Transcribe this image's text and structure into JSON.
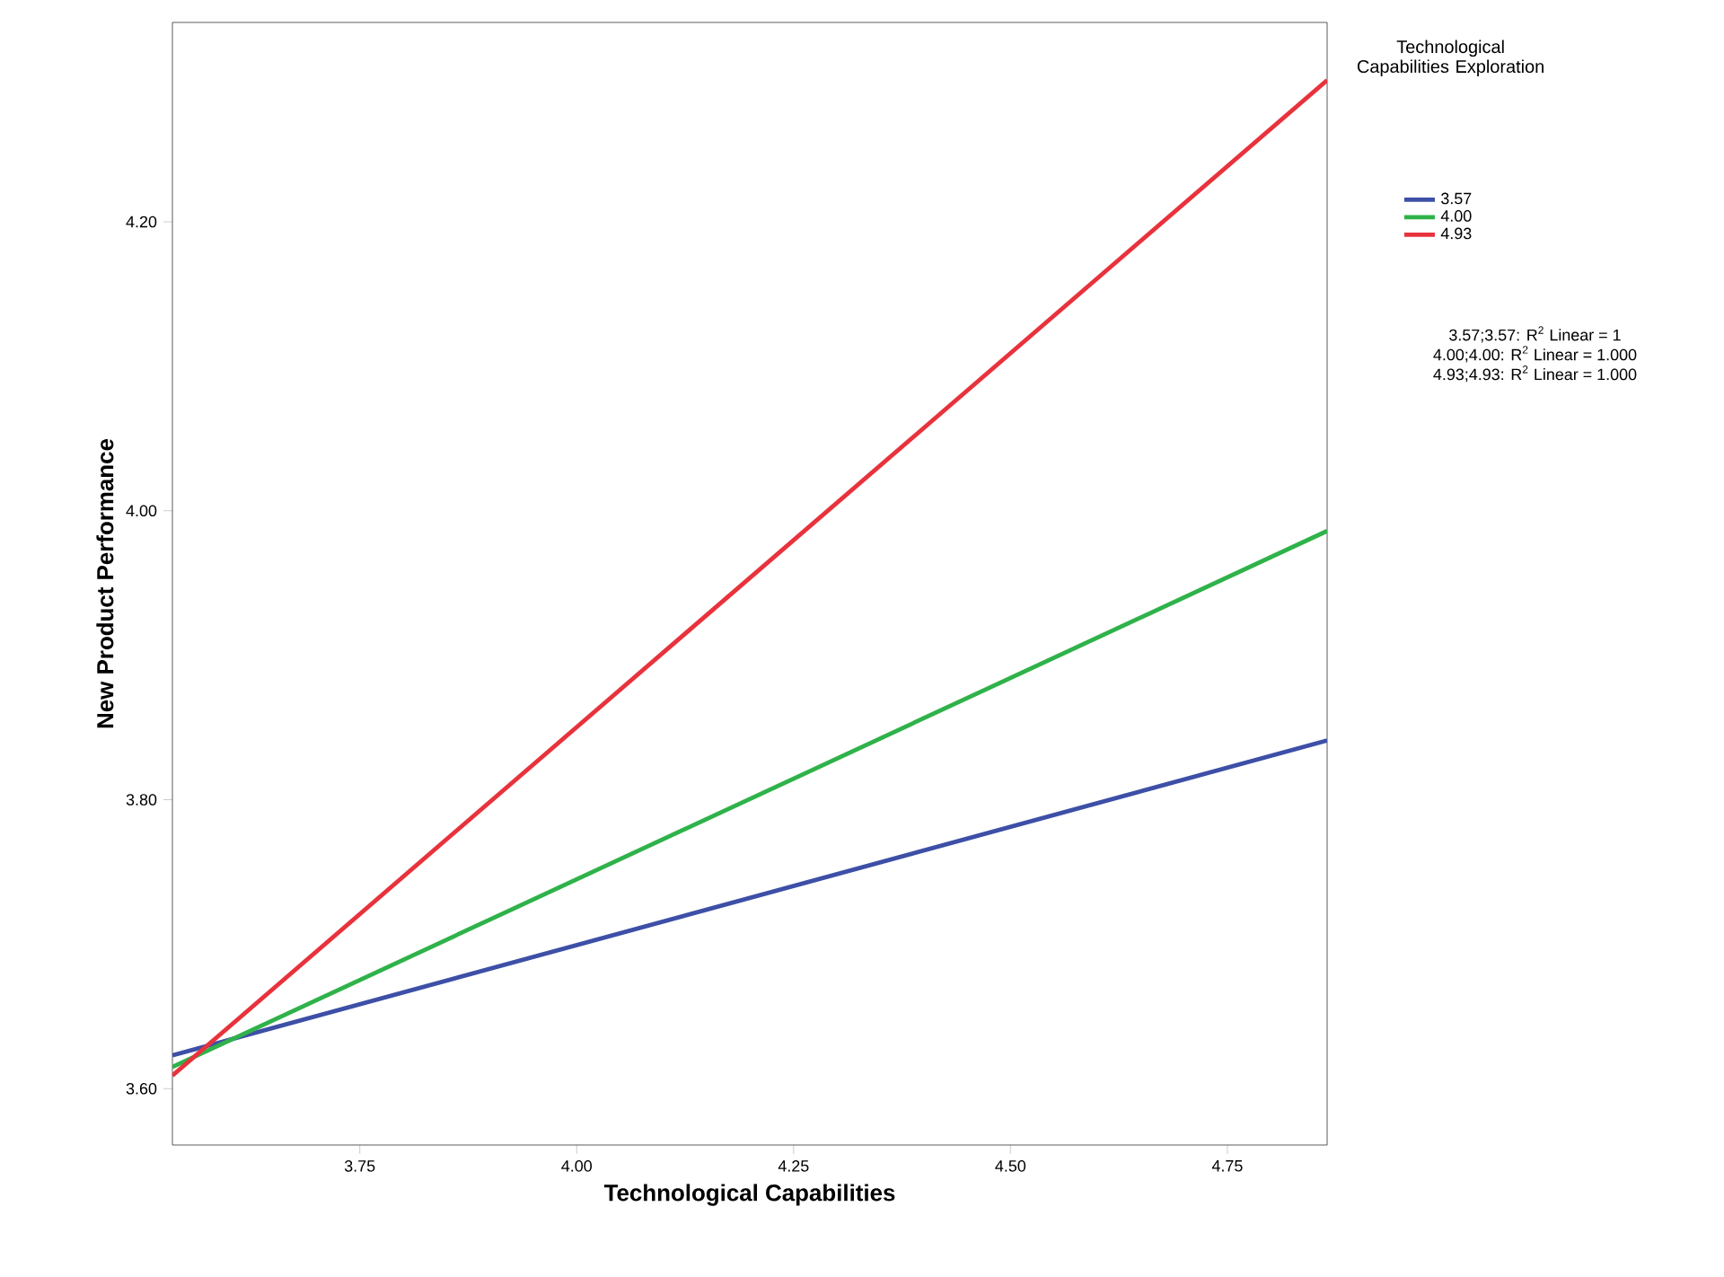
{
  "chart_data": {
    "type": "line",
    "xlabel": "Technological Capabilities",
    "ylabel": "New Product Performance",
    "legend_title": "Technological Capabilities Exploration",
    "legend": "right",
    "marker": "none",
    "line_style": "solid",
    "xlim": [
      3.534,
      4.865
    ],
    "ylim": [
      3.561,
      4.338
    ],
    "xticks": [
      {
        "value": 3.75,
        "label": "3.75"
      },
      {
        "value": 4.0,
        "label": "4.00"
      },
      {
        "value": 4.25,
        "label": "4.25"
      },
      {
        "value": 4.5,
        "label": "4.50"
      },
      {
        "value": 4.75,
        "label": "4.75"
      }
    ],
    "yticks": [
      {
        "value": 3.6,
        "label": "3.60"
      },
      {
        "value": 3.8,
        "label": "3.80"
      },
      {
        "value": 4.0,
        "label": "4.00"
      },
      {
        "value": 4.2,
        "label": "4.20"
      }
    ],
    "x": [
      3.534,
      4.865
    ],
    "series": [
      {
        "name": "3.57",
        "color": "#3d4fa6",
        "values": [
          3.623,
          3.841
        ]
      },
      {
        "name": "4.00",
        "color": "#2fb24a",
        "values": [
          3.615,
          3.986
        ]
      },
      {
        "name": "4.93",
        "color": "#e8323c",
        "values": [
          3.609,
          4.298
        ]
      }
    ],
    "annotations": [
      "3.57;3.57: R$^{2}$ Linear = 1",
      "4.00;4.00: R$^{2}$ Linear = 1.000",
      "4.93;4.93: R$^{2}$ Linear = 1.000"
    ]
  }
}
